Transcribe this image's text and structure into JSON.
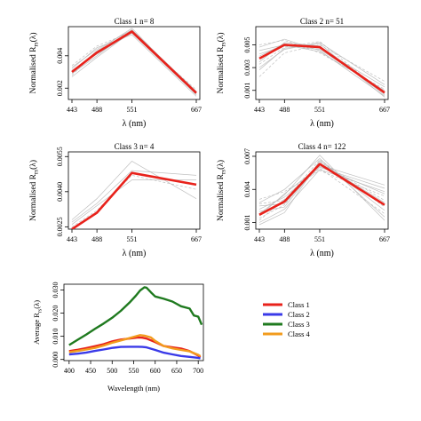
{
  "chart_data": [
    {
      "type": "line",
      "title": "Class 1   n= 8",
      "xlabel": "λ  (nm)",
      "ylabel_main": "Normalised  R",
      "ylabel_sub": "rs",
      "ylabel_tail": "(λ)",
      "x": [
        443,
        488,
        551,
        667
      ],
      "x_ticks": [
        "443",
        "488",
        "551",
        "667"
      ],
      "y_ticks": [
        0.002,
        0.004
      ],
      "y_tick_labels": [
        "0.002",
        "0.004"
      ],
      "ylim": [
        0.0013,
        0.0058
      ],
      "series": [
        {
          "role": "mean",
          "color": "#e8221b",
          "values": [
            0.003,
            0.0042,
            0.0055,
            0.0017
          ]
        },
        {
          "role": "individual",
          "color": "#b9b9b9",
          "values": [
            0.0031,
            0.0041,
            0.0054,
            0.0016
          ]
        },
        {
          "role": "individual",
          "color": "#b9b9b9",
          "values": [
            0.0033,
            0.0044,
            0.0056,
            0.0018
          ]
        },
        {
          "role": "individual",
          "color": "#b9b9b9",
          "values": [
            0.0028,
            0.0043,
            0.0054,
            0.0019
          ]
        },
        {
          "role": "individual",
          "color": "#b9b9b9",
          "values": [
            0.0032,
            0.0045,
            0.0053,
            0.0015
          ]
        },
        {
          "role": "individual",
          "color": "#b9b9b9",
          "values": [
            0.0029,
            0.004,
            0.0056,
            0.0016
          ]
        },
        {
          "role": "individual",
          "color": "#b9b9b9",
          "values": [
            0.0034,
            0.0046,
            0.0055,
            0.0017
          ]
        },
        {
          "role": "individual",
          "color": "#b9b9b9",
          "values": [
            0.0027,
            0.0039,
            0.0055,
            0.0018
          ]
        },
        {
          "role": "individual",
          "color": "#b9b9b9",
          "values": [
            0.003,
            0.0043,
            0.0057,
            0.0016
          ]
        }
      ]
    },
    {
      "type": "line",
      "title": "Class 2   n= 51",
      "xlabel": "λ  (nm)",
      "ylabel_main": "Normalised  R",
      "ylabel_sub": "rs",
      "ylabel_tail": "(λ)",
      "x": [
        443,
        488,
        551,
        667
      ],
      "x_ticks": [
        "443",
        "488",
        "551",
        "667"
      ],
      "y_ticks": [
        0.001,
        0.003,
        0.005
      ],
      "y_tick_labels": [
        "0.001",
        "0.003",
        "0.005"
      ],
      "ylim": [
        0.0002,
        0.0066
      ],
      "series": [
        {
          "role": "mean",
          "color": "#e8221b",
          "values": [
            0.0038,
            0.005,
            0.0048,
            0.0008
          ]
        },
        {
          "role": "individual",
          "color": "#b9b9b9",
          "values": [
            0.003,
            0.0046,
            0.0052,
            0.0015
          ]
        },
        {
          "role": "individual",
          "color": "#b9b9b9",
          "values": [
            0.0048,
            0.0055,
            0.0045,
            0.0005
          ]
        },
        {
          "role": "individual",
          "color": "#b9b9b9",
          "values": [
            0.0022,
            0.0043,
            0.005,
            0.0018
          ]
        },
        {
          "role": "individual",
          "color": "#b9b9b9",
          "values": [
            0.0042,
            0.0049,
            0.0046,
            0.0009
          ]
        },
        {
          "role": "individual",
          "color": "#b9b9b9",
          "values": [
            0.0035,
            0.0052,
            0.0049,
            0.0006
          ]
        },
        {
          "role": "individual",
          "color": "#b9b9b9",
          "values": [
            0.005,
            0.0054,
            0.0043,
            0.0011
          ]
        },
        {
          "role": "individual",
          "color": "#b9b9b9",
          "values": [
            0.0028,
            0.0047,
            0.0051,
            0.0004
          ]
        },
        {
          "role": "individual",
          "color": "#b9b9b9",
          "values": [
            0.004,
            0.0051,
            0.0047,
            0.0013
          ]
        },
        {
          "role": "individual",
          "color": "#b9b9b9",
          "values": [
            0.0033,
            0.0048,
            0.0053,
            0.0007
          ]
        },
        {
          "role": "individual",
          "color": "#b9b9b9",
          "values": [
            0.0045,
            0.005,
            0.0044,
            0.001
          ]
        }
      ]
    },
    {
      "type": "line",
      "title": "Class 3   n= 4",
      "xlabel": "λ  (nm)",
      "ylabel_main": "Normalised  R",
      "ylabel_sub": "rs",
      "ylabel_tail": "(λ)",
      "x": [
        443,
        488,
        551,
        667
      ],
      "x_ticks": [
        "443",
        "488",
        "551",
        "667"
      ],
      "y_ticks": [
        0.0025,
        0.004,
        0.0055
      ],
      "y_tick_labels": [
        "0.0025",
        "0.0040",
        "0.0055"
      ],
      "ylim": [
        0.0024,
        0.0057
      ],
      "series": [
        {
          "role": "mean",
          "color": "#e8221b",
          "values": [
            0.0024,
            0.0031,
            0.0048,
            0.0043
          ]
        },
        {
          "role": "individual",
          "color": "#b9b9b9",
          "values": [
            0.0028,
            0.0037,
            0.0053,
            0.0037
          ]
        },
        {
          "role": "individual",
          "color": "#b9b9b9",
          "values": [
            0.0026,
            0.0034,
            0.0045,
            0.0045
          ]
        },
        {
          "role": "individual",
          "color": "#b9b9b9",
          "values": [
            0.0025,
            0.0032,
            0.0047,
            0.0041
          ]
        },
        {
          "role": "individual",
          "color": "#b9b9b9",
          "values": [
            0.0027,
            0.0035,
            0.0049,
            0.0047
          ]
        }
      ]
    },
    {
      "type": "line",
      "title": "Class 4   n= 122",
      "xlabel": "λ  (nm)",
      "ylabel_main": "Normalised  R",
      "ylabel_sub": "rs",
      "ylabel_tail": "(λ)",
      "x": [
        443,
        488,
        551,
        667
      ],
      "x_ticks": [
        "443",
        "488",
        "551",
        "667"
      ],
      "y_ticks": [
        0.001,
        0.004,
        0.007
      ],
      "y_tick_labels": [
        "0.001",
        "0.004",
        "0.007"
      ],
      "ylim": [
        0.0004,
        0.0074
      ],
      "series": [
        {
          "role": "mean",
          "color": "#e8221b",
          "values": [
            0.0017,
            0.0029,
            0.0063,
            0.0026
          ]
        },
        {
          "role": "individual",
          "color": "#b9b9b9",
          "values": [
            0.001,
            0.0022,
            0.0058,
            0.0038
          ]
        },
        {
          "role": "individual",
          "color": "#b9b9b9",
          "values": [
            0.0028,
            0.004,
            0.0068,
            0.0015
          ]
        },
        {
          "role": "individual",
          "color": "#b9b9b9",
          "values": [
            0.0014,
            0.0026,
            0.0065,
            0.003
          ]
        },
        {
          "role": "individual",
          "color": "#b9b9b9",
          "values": [
            0.0022,
            0.0033,
            0.006,
            0.0041
          ]
        },
        {
          "role": "individual",
          "color": "#b9b9b9",
          "values": [
            0.0008,
            0.0019,
            0.0066,
            0.0021
          ]
        },
        {
          "role": "individual",
          "color": "#b9b9b9",
          "values": [
            0.0031,
            0.0038,
            0.0057,
            0.0034
          ]
        },
        {
          "role": "individual",
          "color": "#b9b9b9",
          "values": [
            0.0018,
            0.0035,
            0.0071,
            0.0012
          ]
        },
        {
          "role": "individual",
          "color": "#b9b9b9",
          "values": [
            0.0025,
            0.0027,
            0.0062,
            0.0044
          ]
        },
        {
          "role": "individual",
          "color": "#b9b9b9",
          "values": [
            0.0012,
            0.0031,
            0.0059,
            0.0018
          ]
        },
        {
          "role": "individual",
          "color": "#b9b9b9",
          "values": [
            0.002,
            0.0024,
            0.0064,
            0.0028
          ]
        },
        {
          "role": "individual",
          "color": "#b9b9b9",
          "values": [
            0.0016,
            0.0036,
            0.0061,
            0.0036
          ]
        },
        {
          "role": "individual",
          "color": "#b9b9b9",
          "values": [
            0.0027,
            0.003,
            0.0067,
            0.0024
          ]
        }
      ]
    },
    {
      "type": "line",
      "title": "",
      "xlabel": "Wavelength (nm)",
      "ylabel_main": "Average R",
      "ylabel_sub": "rs",
      "ylabel_tail": "(λ)",
      "x_ticks": [
        400,
        450,
        500,
        550,
        600,
        650,
        700
      ],
      "x_tick_labels": [
        "400",
        "450",
        "500",
        "550",
        "600",
        "650",
        "700"
      ],
      "xlim": [
        388,
        712
      ],
      "y_ticks": [
        0.0,
        0.01,
        0.02,
        0.03
      ],
      "y_tick_labels": [
        "0.000",
        "0.010",
        "0.020",
        "0.030"
      ],
      "ylim": [
        -0.0005,
        0.0325
      ],
      "legend_position": "right of plot",
      "series": [
        {
          "name": "Class 1",
          "color": "#e8221b",
          "x": [
            400,
            420,
            440,
            460,
            480,
            500,
            520,
            540,
            560,
            570,
            580,
            600,
            620,
            640,
            660,
            680,
            700,
            705
          ],
          "y": [
            0.0036,
            0.0042,
            0.0049,
            0.0057,
            0.0066,
            0.0078,
            0.0086,
            0.009,
            0.0095,
            0.0094,
            0.009,
            0.0075,
            0.0058,
            0.0052,
            0.0047,
            0.0036,
            0.0017,
            0.001
          ]
        },
        {
          "name": "Class 2",
          "color": "#3a3ae8",
          "x": [
            400,
            420,
            440,
            460,
            480,
            500,
            520,
            540,
            560,
            570,
            580,
            600,
            620,
            640,
            660,
            680,
            700,
            705
          ],
          "y": [
            0.0022,
            0.0025,
            0.003,
            0.0037,
            0.0043,
            0.005,
            0.0054,
            0.0055,
            0.0055,
            0.0054,
            0.0052,
            0.0041,
            0.0029,
            0.0022,
            0.0015,
            0.0011,
            0.0007,
            0.0005
          ]
        },
        {
          "name": "Class 3",
          "color": "#1f7a1f",
          "x": [
            400,
            420,
            440,
            460,
            480,
            500,
            520,
            540,
            555,
            565,
            575,
            580,
            590,
            600,
            620,
            640,
            660,
            680,
            690,
            700,
            708
          ],
          "y": [
            0.0062,
            0.0085,
            0.0108,
            0.0132,
            0.0155,
            0.018,
            0.021,
            0.0245,
            0.0275,
            0.0298,
            0.0312,
            0.031,
            0.029,
            0.0272,
            0.0262,
            0.025,
            0.023,
            0.022,
            0.019,
            0.0185,
            0.015
          ]
        },
        {
          "name": "Class 4",
          "color": "#f29b1d",
          "x": [
            400,
            420,
            440,
            460,
            480,
            500,
            520,
            540,
            555,
            565,
            575,
            590,
            600,
            620,
            640,
            660,
            680,
            700,
            705
          ],
          "y": [
            0.0032,
            0.0037,
            0.0043,
            0.005,
            0.006,
            0.0072,
            0.0082,
            0.0092,
            0.01,
            0.0105,
            0.0103,
            0.0095,
            0.008,
            0.0058,
            0.0048,
            0.0041,
            0.0035,
            0.002,
            0.0014
          ]
        }
      ]
    }
  ]
}
